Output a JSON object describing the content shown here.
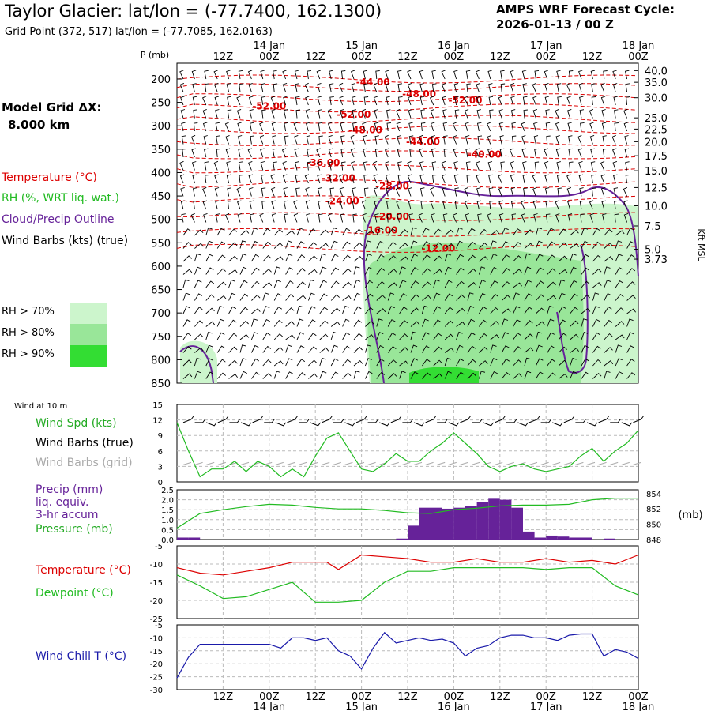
{
  "header": {
    "title": "Taylor Glacier:  lat/lon = (-77.7400, 162.1300)",
    "subtitle": "Grid Point (372, 517) lat/lon = (-77.7085, 162.0163)",
    "cycle_label": "AMPS WRF Forecast Cycle:",
    "cycle_value": "2026-01-13 / 00  Z"
  },
  "left_panel": {
    "grid_label": "Model Grid ΔX:",
    "grid_value": "8.000 km",
    "legend": [
      {
        "text": "Temperature (°C)",
        "color": "#dd0000"
      },
      {
        "text": "RH (%, WRT liq. wat.)",
        "color": "#22bb22"
      },
      {
        "text": "Cloud/Precip Outline",
        "color": "#662299"
      },
      {
        "text": "Wind Barbs (kts) (true)",
        "color": "#000000"
      }
    ],
    "rh_legend": [
      {
        "text": "RH > 70%",
        "color": "#ccf5cc"
      },
      {
        "text": "RH > 80%",
        "color": "#99e699"
      },
      {
        "text": "RH > 90%",
        "color": "#33dd33"
      }
    ],
    "wind10_label": "Wind at 10 m",
    "wind_legend": [
      {
        "text": "Wind Spd (kts)",
        "color": "#22aa22"
      },
      {
        "text": "Wind Barbs (true)",
        "color": "#000000"
      },
      {
        "text": "Wind Barbs (grid)",
        "color": "#aaaaaa"
      }
    ],
    "precip_legend": [
      {
        "text": "Precip (mm)",
        "color": "#662299"
      },
      {
        "text": "liq. equiv.",
        "color": "#662299"
      },
      {
        "text": "3-hr accum",
        "color": "#662299"
      },
      {
        "text": "Pressure (mb)",
        "color": "#22aa22"
      }
    ],
    "temp_legend": [
      {
        "text": "Temperature (°C)",
        "color": "#dd0000"
      },
      {
        "text": "Dewpoint (°C)",
        "color": "#22bb22"
      }
    ],
    "chill_legend": [
      {
        "text": "Wind Chill T (°C)",
        "color": "#1a1aaa"
      }
    ]
  },
  "colors": {
    "temp": "#dd0000",
    "rh70": "#ccf5cc",
    "rh80": "#99e699",
    "rh90": "#33dd33",
    "cloud": "#662299",
    "windspd": "#22bb22",
    "gridbarb": "#aaaaaa",
    "precip": "#662299",
    "chill": "#1a1aaa"
  },
  "chart_data": [
    {
      "type": "time-height cross section",
      "time_axis": {
        "hours": [
          6,
          12,
          18,
          24,
          30,
          36,
          42,
          48,
          54,
          60,
          66,
          72,
          78,
          84,
          90,
          96,
          102,
          108,
          114,
          120
        ],
        "tick_labels": [
          "12Z",
          "00Z",
          "12Z",
          "00Z",
          "12Z",
          "00Z",
          "12Z",
          "00Z",
          "12Z",
          "00Z"
        ],
        "tick_hours": [
          12,
          24,
          36,
          48,
          60,
          72,
          84,
          96,
          108,
          120
        ],
        "date_labels": [
          "14 Jan",
          "15 Jan",
          "16 Jan",
          "17 Jan",
          "18 Jan"
        ],
        "date_hours": [
          24,
          48,
          72,
          96,
          120
        ]
      },
      "pressure_axis_label": "P (mb)",
      "pressure_levels": [
        200,
        250,
        300,
        350,
        400,
        450,
        500,
        550,
        600,
        650,
        700,
        750,
        800,
        850
      ],
      "height_axis_label": "Kft MSL",
      "height_labels": [
        "40.0",
        "35.0",
        "30.0",
        "25.0",
        "22.5",
        "20.0",
        "17.5",
        "15.0",
        "12.5",
        "10.0",
        "7.5",
        "5.0",
        "3.73"
      ],
      "height_label_pressures": [
        182,
        207,
        240,
        283,
        307,
        334,
        364,
        396,
        432,
        471,
        514,
        564,
        585
      ],
      "temperature_contour_labels": [
        {
          "text": "-44.00",
          "hour": 51,
          "p": 207
        },
        {
          "text": "-48.00",
          "hour": 63,
          "p": 232
        },
        {
          "text": "-52.00",
          "hour": 75,
          "p": 246
        },
        {
          "text": "-52.00",
          "hour": 24,
          "p": 258
        },
        {
          "text": "-52.00",
          "hour": 46,
          "p": 276
        },
        {
          "text": "-48.00",
          "hour": 49,
          "p": 309
        },
        {
          "text": "-44.00",
          "hour": 64,
          "p": 334
        },
        {
          "text": "-40.00",
          "hour": 80,
          "p": 361
        },
        {
          "text": "-36.00",
          "hour": 38,
          "p": 379
        },
        {
          "text": "-32.00",
          "hour": 42,
          "p": 412
        },
        {
          "text": "-28.00",
          "hour": 56,
          "p": 429
        },
        {
          "text": "-24.00",
          "hour": 43,
          "p": 461
        },
        {
          "text": "-20.00",
          "hour": 56,
          "p": 494
        },
        {
          "text": "-16.00",
          "hour": 53,
          "p": 523
        },
        {
          "text": "-12.00",
          "hour": 68,
          "p": 562
        }
      ]
    },
    {
      "type": "line",
      "title": "Wind at 10 m",
      "ylabel": "Wind Spd (kts)",
      "y_ticks": [
        0,
        3,
        6,
        9,
        12,
        15
      ],
      "ylim": [
        0,
        15
      ],
      "x_hours": [
        0,
        3,
        6,
        9,
        12,
        15,
        18,
        21,
        24,
        27,
        30,
        33,
        36,
        39,
        42,
        45,
        48,
        51,
        54,
        57,
        60,
        63,
        66,
        69,
        72,
        75,
        78,
        81,
        84,
        87,
        90,
        93,
        96,
        99,
        102,
        105,
        108,
        111,
        114,
        117,
        120
      ],
      "wind_speed": [
        11.5,
        6,
        1,
        2.5,
        2.5,
        4,
        2,
        4,
        3,
        1,
        2.5,
        1,
        5,
        8.5,
        9.5,
        6,
        2.5,
        2,
        3.5,
        5.5,
        4,
        4,
        6,
        7.5,
        9.5,
        7.5,
        5.5,
        3,
        2,
        3,
        3.5,
        2.5,
        2,
        2.5,
        3,
        5,
        6.5,
        4,
        6,
        7.5,
        10
      ]
    },
    {
      "type": "bar+line",
      "ylabel_left": "Precip (mm)",
      "ylabel_right": "(mb)",
      "y_ticks_left": [
        "0.0",
        "0.5",
        "1.0",
        "1.5",
        "2.0",
        "2.5"
      ],
      "y_ticks_right": [
        "848",
        "850",
        "852",
        "854"
      ],
      "ylim_left": [
        0,
        2.5
      ],
      "ylim_right": [
        848,
        854.5
      ],
      "bar_hours": [
        0,
        3,
        6,
        9,
        12,
        15,
        18,
        21,
        24,
        27,
        30,
        33,
        36,
        39,
        42,
        45,
        48,
        51,
        54,
        57,
        60,
        63,
        66,
        69,
        72,
        75,
        78,
        81,
        84,
        87,
        90,
        93,
        96,
        99,
        102,
        105,
        108,
        111,
        114,
        117
      ],
      "precip": [
        0.1,
        0.1,
        0,
        0,
        0,
        0,
        0,
        0,
        0,
        0,
        0,
        0,
        0,
        0,
        0,
        0,
        0,
        0,
        0,
        0.05,
        0.7,
        1.6,
        1.6,
        1.55,
        1.6,
        1.7,
        1.9,
        2.05,
        2.0,
        1.6,
        0.4,
        0.1,
        0.2,
        0.15,
        0.1,
        0.1,
        0,
        0.05,
        0,
        0
      ],
      "x_hours": [
        0,
        6,
        12,
        18,
        24,
        30,
        36,
        42,
        48,
        54,
        60,
        66,
        72,
        78,
        84,
        90,
        96,
        102,
        108,
        114,
        120
      ],
      "pressure": [
        849.5,
        851.4,
        851.9,
        852.3,
        852.6,
        852.5,
        852.2,
        852.0,
        852.0,
        851.8,
        851.5,
        851.4,
        851.9,
        852.1,
        852.4,
        852.5,
        852.5,
        852.6,
        853.2,
        853.4,
        853.4
      ]
    },
    {
      "type": "line",
      "y_ticks": [
        -5,
        -10,
        -15,
        -20,
        -25
      ],
      "ylim": [
        -25,
        -5
      ],
      "x_hours": [
        0,
        6,
        12,
        18,
        24,
        30,
        36,
        39,
        42,
        48,
        54,
        60,
        66,
        72,
        78,
        84,
        90,
        96,
        102,
        108,
        114,
        120
      ],
      "temperature": [
        -11,
        -12.5,
        -13,
        -12,
        -11,
        -9.5,
        -9.5,
        -9.5,
        -11.5,
        -7.5,
        -8,
        -8.5,
        -9.5,
        -9.5,
        -8.5,
        -9.5,
        -9.5,
        -8.5,
        -9.5,
        -9,
        -10,
        -7.5
      ],
      "dewpoint": [
        -13,
        -16,
        -19.5,
        -19,
        -17,
        -15,
        -20.5,
        -20.5,
        -20.5,
        -20,
        -15,
        -12,
        -12,
        -11,
        -11,
        -11,
        -11,
        -11.5,
        -11,
        -11,
        -16,
        -18.5
      ]
    },
    {
      "type": "line",
      "ylabel": "Wind Chill T (°C)",
      "y_ticks": [
        -5,
        -10,
        -15,
        -20,
        -25,
        -30
      ],
      "ylim": [
        -30,
        -5
      ],
      "x_hours": [
        0,
        3,
        6,
        9,
        12,
        15,
        18,
        21,
        24,
        27,
        30,
        33,
        36,
        39,
        42,
        45,
        48,
        51,
        54,
        57,
        60,
        63,
        66,
        69,
        72,
        75,
        78,
        81,
        84,
        87,
        90,
        93,
        96,
        99,
        102,
        105,
        108,
        111,
        114,
        117,
        120
      ],
      "wind_chill": [
        -25.5,
        -17.5,
        -12.5,
        -12.5,
        -12.5,
        -12.5,
        -12.5,
        -12.5,
        -12.5,
        -14,
        -10,
        -10,
        -11,
        -10,
        -15,
        -17,
        -22,
        -14,
        -8,
        -12,
        -11,
        -10,
        -11,
        -10.5,
        -12,
        -17,
        -14,
        -13,
        -10,
        -9,
        -9,
        -10,
        -10,
        -11,
        -9,
        -8.5,
        -8.5,
        -17,
        -14.5,
        -15.5,
        -18
      ]
    }
  ]
}
